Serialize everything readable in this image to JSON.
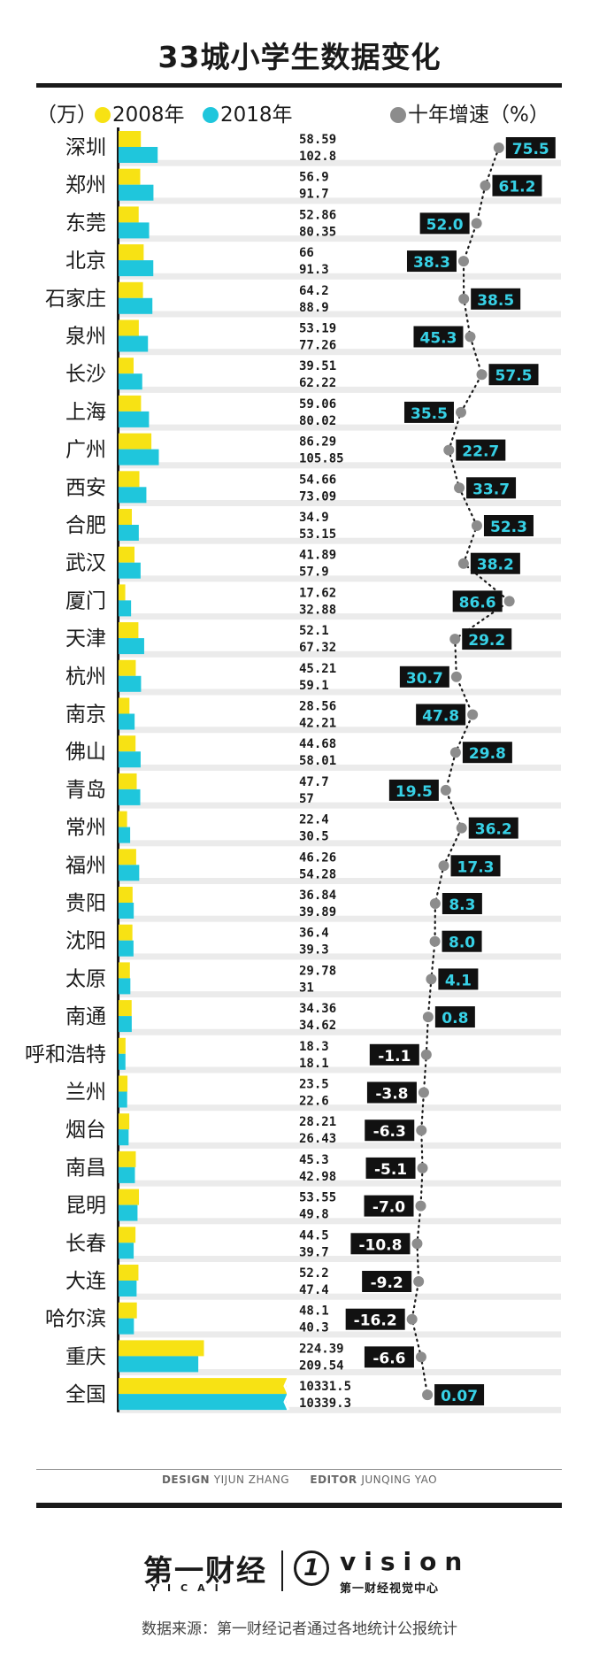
{
  "page": {
    "title": "33城小学生数据变化",
    "credits": {
      "design_label": "DESIGN",
      "design_name": "YIJUN ZHANG",
      "editor_label": "EDITOR",
      "editor_name": "JUNQING YAO"
    },
    "brand": {
      "name": "第一财经",
      "name_romanized": "YICAI",
      "vision_mark": "1",
      "vision_word": "vision",
      "vision_sub": "第一财经视觉中心"
    },
    "source": "数据来源：第一财经记者通过各地统计公报统计"
  },
  "colors": {
    "y2008": "#f7e214",
    "y2018": "#1fc6dc",
    "growth_dot": "#8c8c8c",
    "growth_label_bg": "#111111",
    "growth_label_positive": "#37d1e6",
    "growth_label_negative": "#ffffff",
    "row_stripe": "#ebebeb"
  },
  "chart_data": {
    "type": "bar",
    "unit_label": "（万）",
    "categories": [
      "深圳",
      "郑州",
      "东莞",
      "北京",
      "石家庄",
      "泉州",
      "长沙",
      "上海",
      "广州",
      "西安",
      "合肥",
      "武汉",
      "厦门",
      "天津",
      "杭州",
      "南京",
      "佛山",
      "青岛",
      "常州",
      "福州",
      "贵阳",
      "沈阳",
      "太原",
      "南通",
      "呼和浩特",
      "兰州",
      "烟台",
      "南昌",
      "昆明",
      "长春",
      "大连",
      "哈尔滨",
      "重庆",
      "全国"
    ],
    "series": [
      {
        "name": "2008年",
        "values": [
          58.59,
          56.9,
          52.86,
          66,
          64.2,
          53.19,
          39.51,
          59.06,
          86.29,
          54.66,
          34.9,
          41.89,
          17.62,
          52.1,
          45.21,
          28.56,
          44.68,
          47.7,
          22.4,
          46.26,
          36.84,
          36.4,
          29.78,
          34.36,
          18.3,
          23.5,
          28.21,
          45.3,
          53.55,
          44.5,
          52.2,
          48.1,
          224.39,
          10331.5
        ],
        "labels": [
          "58.59",
          "56.9",
          "52.86",
          "66",
          "64.2",
          "53.19",
          "39.51",
          "59.06",
          "86.29",
          "54.66",
          "34.9",
          "41.89",
          "17.62",
          "52.1",
          "45.21",
          "28.56",
          "44.68",
          "47.7",
          "22.4",
          "46.26",
          "36.84",
          "36.4",
          "29.78",
          "34.36",
          "18.3",
          "23.5",
          "28.21",
          "45.3",
          "53.55",
          "44.5",
          "52.2",
          "48.1",
          "224.39",
          "10331.5"
        ]
      },
      {
        "name": "2018年",
        "values": [
          102.8,
          91.7,
          80.35,
          91.3,
          88.9,
          77.26,
          62.22,
          80.02,
          105.85,
          73.09,
          53.15,
          57.9,
          32.88,
          67.32,
          59.1,
          42.21,
          58.01,
          57,
          30.5,
          54.28,
          39.89,
          39.3,
          31,
          34.62,
          18.1,
          22.6,
          26.43,
          42.98,
          49.8,
          39.7,
          47.4,
          40.3,
          209.54,
          10339.3
        ],
        "labels": [
          "102.8",
          "91.7",
          "80.35",
          "91.3",
          "88.9",
          "77.26",
          "62.22",
          "80.02",
          "105.85",
          "73.09",
          "53.15",
          "57.9",
          "32.88",
          "67.32",
          "59.1",
          "42.21",
          "58.01",
          "57",
          "30.5",
          "54.28",
          "39.89",
          "39.3",
          "31",
          "34.62",
          "18.1",
          "22.6",
          "26.43",
          "42.98",
          "49.8",
          "39.7",
          "47.4",
          "40.3",
          "209.54",
          "10339.3"
        ]
      }
    ],
    "growth": {
      "name": "十年增速（%）",
      "values": [
        75.5,
        61.2,
        52.0,
        38.3,
        38.5,
        45.3,
        57.5,
        35.5,
        22.7,
        33.7,
        52.3,
        38.2,
        86.6,
        29.2,
        30.7,
        47.8,
        29.8,
        19.5,
        36.2,
        17.3,
        8.3,
        8.0,
        4.1,
        0.8,
        -1.1,
        -3.8,
        -6.3,
        -5.1,
        -7.0,
        -10.8,
        -9.2,
        -16.2,
        -6.6,
        0.07
      ],
      "labels": [
        "75.5",
        "61.2",
        "52.0",
        "38.3",
        "38.5",
        "45.3",
        "57.5",
        "35.5",
        "22.7",
        "33.7",
        "52.3",
        "38.2",
        "86.6",
        "29.2",
        "30.7",
        "47.8",
        "29.8",
        "19.5",
        "36.2",
        "17.3",
        "8.3",
        "8.0",
        "4.1",
        "0.8",
        "-1.1",
        "-3.8",
        "-6.3",
        "-5.1",
        "-7.0",
        "-10.8",
        "-9.2",
        "-16.2",
        "-6.6",
        "0.07"
      ],
      "label_side": [
        "R",
        "R",
        "L",
        "L",
        "R",
        "L",
        "R",
        "L",
        "R",
        "R",
        "R",
        "R",
        "L",
        "R",
        "L",
        "L",
        "R",
        "L",
        "R",
        "R",
        "R",
        "R",
        "R",
        "R",
        "L",
        "L",
        "L",
        "L",
        "L",
        "L",
        "L",
        "L",
        "L",
        "R"
      ]
    },
    "axis_break": [
      "全国"
    ],
    "legend": "top"
  }
}
